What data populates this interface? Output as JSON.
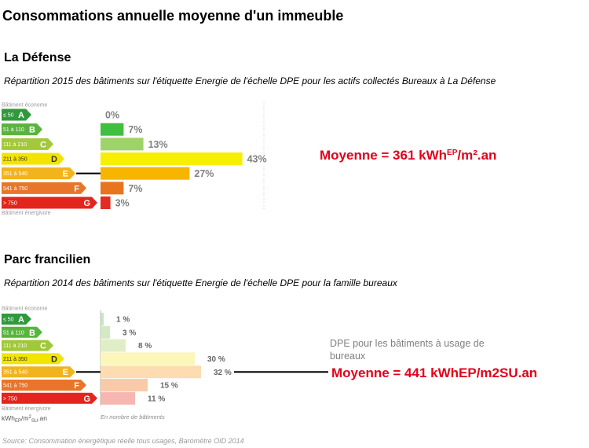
{
  "title": "Consommations annuelle moyenne d'un immeuble",
  "sections": [
    {
      "heading": "La Défense",
      "subtitle": "Répartition 2015 des bâtiments sur l'étiquette Energie de l'échelle DPE pour les actifs collectés Bureaux à La Défense"
    },
    {
      "heading": "Parc francilien",
      "subtitle": "Répartition 2014 des bâtiments sur l'étiquette Energie de l'échelle DPE pour la famille bureaux"
    }
  ],
  "chart_data": [
    {
      "type": "bar",
      "categories": [
        "A",
        "B",
        "C",
        "D",
        "E",
        "F",
        "G"
      ],
      "category_ranges": [
        "≤ 50",
        "51 à 110",
        "111 à 210",
        "211 à 350",
        "351 à 540",
        "541 à 750",
        "> 750"
      ],
      "category_colors": [
        "#2f9a3c",
        "#5bb33f",
        "#a3c83b",
        "#f3e400",
        "#f2b31c",
        "#e8762a",
        "#e2261d"
      ],
      "values": [
        0,
        7,
        13,
        43,
        27,
        7,
        3
      ],
      "value_labels": [
        "0%",
        "7%",
        "13%",
        "43%",
        "27%",
        "7%",
        "3%"
      ],
      "bar_colors": [
        "#2f9a3c",
        "#3fbf3f",
        "#9ed36a",
        "#f7ef00",
        "#f7b500",
        "#e8751e",
        "#e42b24"
      ],
      "scale_top_label": "Bâtiment économe",
      "scale_bottom_label": "Bâtiment énergivore",
      "average": {
        "text": "Moyenne = 361 kWh",
        "sup": "EP",
        "suffix": "/m².an",
        "color": "#e2001a"
      },
      "grid": false
    },
    {
      "type": "bar",
      "categories": [
        "A",
        "B",
        "C",
        "D",
        "E",
        "F",
        "G"
      ],
      "category_ranges": [
        "≤ 50",
        "51 à 110",
        "111 à 210",
        "211 à 350",
        "351 à 540",
        "541 à 750",
        "> 750"
      ],
      "category_colors": [
        "#2f9a3c",
        "#57b53b",
        "#9fc83a",
        "#f2e500",
        "#f0b41e",
        "#e9742a",
        "#e2261e"
      ],
      "values": [
        1,
        3,
        8,
        30,
        32,
        15,
        11
      ],
      "value_labels": [
        "1 %",
        "3 %",
        "8 %",
        "30 %",
        "32 %",
        "15 %",
        "11 %"
      ],
      "bar_colors": [
        "#c8e4c2",
        "#d2e9c3",
        "#e0eec8",
        "#fbf7b8",
        "#fcdcb0",
        "#f9caa8",
        "#f6b6b1"
      ],
      "scale_top_label": "Bâtiment économe",
      "scale_bottom_label": "Bâtiment énergivore",
      "unit_label": {
        "base": "kWh",
        "sub1": "EP",
        "mid": "/m",
        "sup": "2",
        "sub2": "SU",
        "end": ".an"
      },
      "xlabel": "En nombre de bâtiments",
      "note_lines": [
        "DPE pour les bâtiments à usage de",
        "bureaux"
      ],
      "average": {
        "text": "Moyenne = 441 kWhEP/m2SU.an",
        "color": "#e2001a"
      },
      "grid": false
    }
  ],
  "source": "Source: Consommation énergétique réelle tous usages, Baromètre OID 2014"
}
